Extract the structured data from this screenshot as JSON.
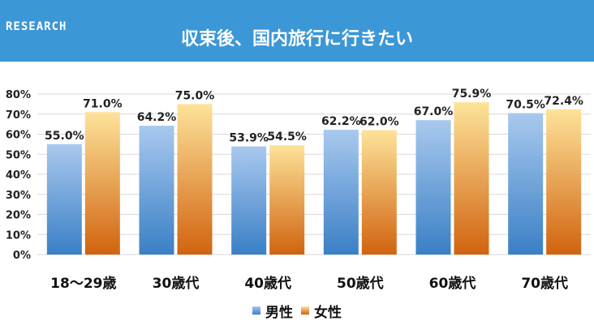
{
  "header": {
    "badge": "RESEARCH",
    "title": "収束後、国内旅行に行きたい"
  },
  "chart_data": {
    "type": "bar",
    "categories": [
      "18〜29歳",
      "30歳代",
      "40歳代",
      "50歳代",
      "60歳代",
      "70歳代"
    ],
    "series": [
      {
        "name": "男性",
        "values": [
          55.0,
          64.2,
          53.9,
          62.2,
          67.0,
          70.5
        ],
        "color_top": "#a9c9ee",
        "color_bottom": "#3a7fc6"
      },
      {
        "name": "女性",
        "values": [
          71.0,
          75.0,
          54.5,
          62.0,
          75.9,
          72.4
        ],
        "color_top": "#fde39a",
        "color_bottom": "#d1630f"
      }
    ],
    "ylim": [
      0,
      80
    ],
    "yticks": [
      0,
      10,
      20,
      30,
      40,
      50,
      60,
      70,
      80
    ],
    "tick_suffix": "%",
    "grid": true,
    "legend": "bottom-center",
    "value_format": "{v}%"
  }
}
